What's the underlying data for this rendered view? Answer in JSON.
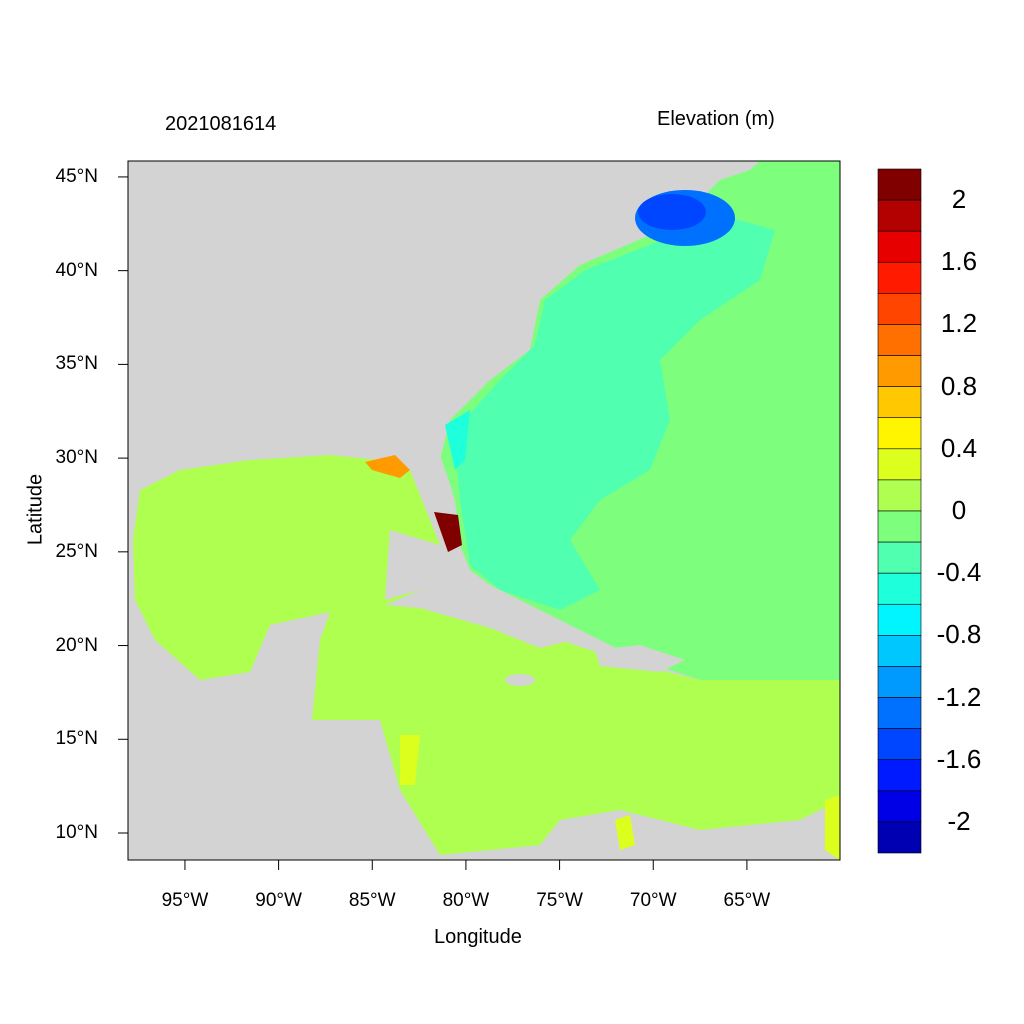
{
  "title_left": "2021081614",
  "title_right": "Elevation (m)",
  "xlabel": "Longitude",
  "ylabel": "Latitude",
  "map": {
    "lon_range": [
      -98.04,
      -60.03
    ],
    "lat_range": [
      8.56,
      45.85
    ],
    "land_color": "#d3d3d3",
    "x_ticks": [
      {
        "value": -95,
        "label": "95°W"
      },
      {
        "value": -90,
        "label": "90°W"
      },
      {
        "value": -85,
        "label": "85°W"
      },
      {
        "value": -80,
        "label": "80°W"
      },
      {
        "value": -75,
        "label": "75°W"
      },
      {
        "value": -70,
        "label": "70°W"
      },
      {
        "value": -65,
        "label": "65°W"
      }
    ],
    "y_ticks": [
      {
        "value": 45,
        "label": "45°N"
      },
      {
        "value": 40,
        "label": "40°N"
      },
      {
        "value": 35,
        "label": "35°N"
      },
      {
        "value": 30,
        "label": "30°N"
      },
      {
        "value": 25,
        "label": "25°N"
      },
      {
        "value": 20,
        "label": "20°N"
      },
      {
        "value": 15,
        "label": "15°N"
      },
      {
        "value": 10,
        "label": "10°N"
      }
    ]
  },
  "colorbar": {
    "colors": [
      "#800000",
      "#b30000",
      "#e60000",
      "#ff1a00",
      "#ff4500",
      "#ff7000",
      "#ff9a00",
      "#ffc800",
      "#fff500",
      "#dcff1e",
      "#afff50",
      "#7dff7d",
      "#50ffaf",
      "#1effdc",
      "#00f5ff",
      "#00c8ff",
      "#009aff",
      "#0070ff",
      "#0045ff",
      "#001aff",
      "#0000e6",
      "#0000b3"
    ],
    "labels": [
      "2",
      "1.6",
      "1.2",
      "0.8",
      "0.4",
      "0",
      "-0.4",
      "-0.8",
      "-1.2",
      "-1.6",
      "-2"
    ]
  }
}
